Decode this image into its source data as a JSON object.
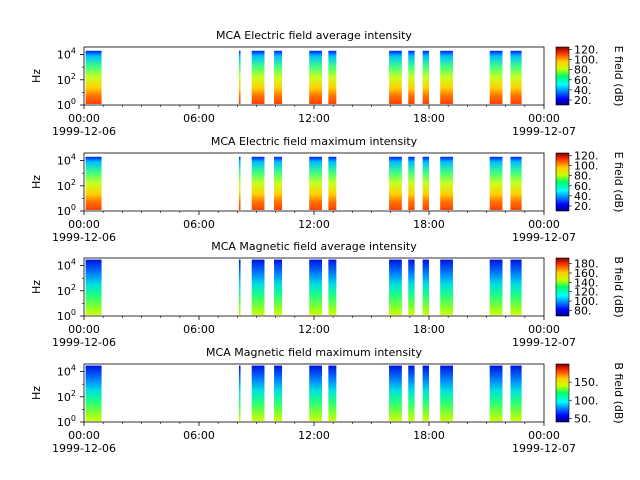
{
  "chart_data": [
    {
      "type": "heatmap",
      "title": "MCA  Electric field average intensity",
      "ylabel": "Hz",
      "y_ticks": [
        {
          "base": "10",
          "exp": "0"
        },
        {
          "base": "10",
          "exp": "2"
        },
        {
          "base": "10",
          "exp": "4"
        }
      ],
      "ylim": [
        1,
        40000
      ],
      "xlim": [
        "1999-12-06T00:00",
        "1999-12-07T00:00"
      ],
      "x_ticks": [
        "00:00",
        "06:00",
        "12:00",
        "18:00",
        "00:00"
      ],
      "x_dates": {
        "start": "1999-12-06",
        "end": "1999-12-07"
      },
      "colorbar": {
        "label": "E field (dB)",
        "ticks": [
          "20.",
          "40.",
          "60.",
          "80.",
          "100.",
          "120."
        ],
        "range": [
          10,
          125
        ]
      },
      "kind": "electric",
      "data_intervals_utc": [
        [
          "00:05",
          "00:55"
        ],
        [
          "08:05",
          "08:10"
        ],
        [
          "08:45",
          "09:25"
        ],
        [
          "09:55",
          "10:20"
        ],
        [
          "11:45",
          "12:25"
        ],
        [
          "12:45",
          "13:10"
        ],
        [
          "15:55",
          "16:35"
        ],
        [
          "16:55",
          "17:15"
        ],
        [
          "17:40",
          "18:00"
        ],
        [
          "18:35",
          "19:15"
        ],
        [
          "21:10",
          "21:50"
        ],
        [
          "22:15",
          "22:50"
        ]
      ]
    },
    {
      "type": "heatmap",
      "title": "MCA  Electric field maximum intensity",
      "ylabel": "Hz",
      "y_ticks": [
        {
          "base": "10",
          "exp": "0"
        },
        {
          "base": "10",
          "exp": "2"
        },
        {
          "base": "10",
          "exp": "4"
        }
      ],
      "ylim": [
        1,
        40000
      ],
      "xlim": [
        "1999-12-06T00:00",
        "1999-12-07T00:00"
      ],
      "x_ticks": [
        "00:00",
        "06:00",
        "12:00",
        "18:00",
        "00:00"
      ],
      "x_dates": {
        "start": "1999-12-06",
        "end": "1999-12-07"
      },
      "colorbar": {
        "label": "E field (dB)",
        "ticks": [
          "20.",
          "40.",
          "60.",
          "80.",
          "100.",
          "120."
        ],
        "range": [
          10,
          125
        ]
      },
      "kind": "electric",
      "data_intervals_utc": [
        [
          "00:05",
          "00:55"
        ],
        [
          "08:05",
          "08:10"
        ],
        [
          "08:45",
          "09:25"
        ],
        [
          "09:55",
          "10:20"
        ],
        [
          "11:45",
          "12:25"
        ],
        [
          "12:45",
          "13:10"
        ],
        [
          "15:55",
          "16:35"
        ],
        [
          "16:55",
          "17:15"
        ],
        [
          "17:40",
          "18:00"
        ],
        [
          "18:35",
          "19:15"
        ],
        [
          "21:10",
          "21:50"
        ],
        [
          "22:15",
          "22:50"
        ]
      ]
    },
    {
      "type": "heatmap",
      "title": "MCA  Magnetic field average intensity",
      "ylabel": "Hz",
      "y_ticks": [
        {
          "base": "10",
          "exp": "0"
        },
        {
          "base": "10",
          "exp": "2"
        },
        {
          "base": "10",
          "exp": "4"
        }
      ],
      "ylim": [
        1,
        40000
      ],
      "xlim": [
        "1999-12-06T00:00",
        "1999-12-07T00:00"
      ],
      "x_ticks": [
        "00:00",
        "06:00",
        "12:00",
        "18:00",
        "00:00"
      ],
      "x_dates": {
        "start": "1999-12-06",
        "end": "1999-12-07"
      },
      "colorbar": {
        "label": "B field (dB)",
        "ticks": [
          "80.",
          "100.",
          "120.",
          "140.",
          "160.",
          "180."
        ],
        "range": [
          68,
          192
        ]
      },
      "kind": "magnetic",
      "data_intervals_utc": [
        [
          "00:05",
          "00:55"
        ],
        [
          "08:05",
          "08:10"
        ],
        [
          "08:45",
          "09:25"
        ],
        [
          "09:55",
          "10:20"
        ],
        [
          "11:45",
          "12:25"
        ],
        [
          "12:45",
          "13:10"
        ],
        [
          "15:55",
          "16:35"
        ],
        [
          "16:55",
          "17:15"
        ],
        [
          "17:40",
          "18:00"
        ],
        [
          "18:35",
          "19:15"
        ],
        [
          "21:10",
          "21:50"
        ],
        [
          "22:15",
          "22:50"
        ]
      ]
    },
    {
      "type": "heatmap",
      "title": "MCA  Magnetic field maximum intensity",
      "ylabel": "Hz",
      "y_ticks": [
        {
          "base": "10",
          "exp": "0"
        },
        {
          "base": "10",
          "exp": "2"
        },
        {
          "base": "10",
          "exp": "4"
        }
      ],
      "ylim": [
        1,
        40000
      ],
      "xlim": [
        "1999-12-06T00:00",
        "1999-12-07T00:00"
      ],
      "x_ticks": [
        "00:00",
        "06:00",
        "12:00",
        "18:00",
        "00:00"
      ],
      "x_dates": {
        "start": "1999-12-06",
        "end": "1999-12-07"
      },
      "colorbar": {
        "label": "B field (dB)",
        "ticks": [
          "50.",
          "100.",
          "150."
        ],
        "range": [
          40,
          200
        ]
      },
      "kind": "magnetic",
      "data_intervals_utc": [
        [
          "00:05",
          "00:55"
        ],
        [
          "08:05",
          "08:10"
        ],
        [
          "08:45",
          "09:25"
        ],
        [
          "09:55",
          "10:20"
        ],
        [
          "11:45",
          "12:25"
        ],
        [
          "12:45",
          "13:10"
        ],
        [
          "15:55",
          "16:35"
        ],
        [
          "16:55",
          "17:15"
        ],
        [
          "17:40",
          "18:00"
        ],
        [
          "18:35",
          "19:15"
        ],
        [
          "21:10",
          "21:50"
        ],
        [
          "22:15",
          "22:50"
        ]
      ]
    }
  ]
}
